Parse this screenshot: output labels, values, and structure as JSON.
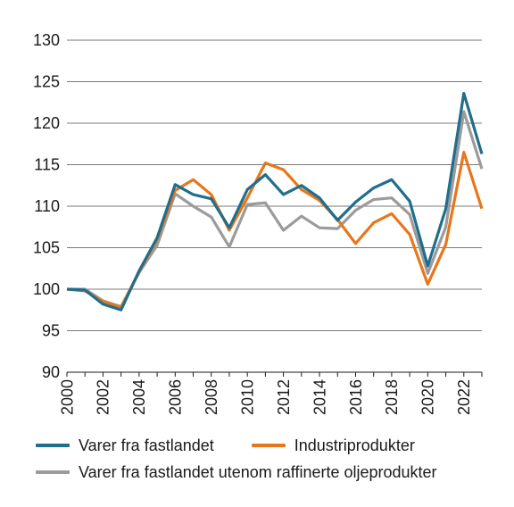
{
  "chart_data": {
    "type": "line",
    "x": [
      2000,
      2001,
      2002,
      2003,
      2004,
      2005,
      2006,
      2007,
      2008,
      2009,
      2010,
      2011,
      2012,
      2013,
      2014,
      2015,
      2016,
      2017,
      2018,
      2019,
      2020,
      2021,
      2022,
      2023
    ],
    "xticks": [
      "2000",
      "2002",
      "2004",
      "2006",
      "2008",
      "2010",
      "2012",
      "2014",
      "2016",
      "2018",
      "2020",
      "2022"
    ],
    "yticks": [
      "90",
      "95",
      "100",
      "105",
      "110",
      "115",
      "120",
      "125",
      "130"
    ],
    "ylim": [
      90,
      130
    ],
    "xlim": [
      2000,
      2023
    ],
    "grid": "horizontal",
    "legend_position": "bottom",
    "series": [
      {
        "name": "Varer fra fastlandet",
        "color": "#1f6e8c",
        "values": [
          100,
          99.9,
          98.2,
          97.5,
          102.2,
          106.2,
          112.6,
          111.4,
          110.9,
          107.4,
          112.0,
          113.8,
          111.4,
          112.5,
          111.0,
          108.3,
          110.5,
          112.2,
          113.2,
          110.6,
          102.8,
          109.7,
          123.6,
          116.3
        ]
      },
      {
        "name": "Industriprodukter",
        "color": "#e8761a",
        "values": [
          100,
          99.8,
          98.5,
          97.8,
          102.1,
          106.0,
          111.9,
          113.2,
          111.4,
          107.1,
          111.0,
          115.2,
          114.4,
          112.0,
          110.7,
          108.4,
          105.5,
          108.0,
          109.1,
          106.6,
          100.6,
          105.4,
          116.5,
          109.7
        ]
      },
      {
        "name": "Varer fra fastlandet utenom raffinerte oljeprodukter",
        "color": "#9b9b9b",
        "values": [
          100,
          100.0,
          98.6,
          97.9,
          102.0,
          105.3,
          111.5,
          110.0,
          108.7,
          105.1,
          110.2,
          110.4,
          107.1,
          108.8,
          107.4,
          107.3,
          109.5,
          110.8,
          111.0,
          109.0,
          101.9,
          107.5,
          121.4,
          114.5
        ]
      }
    ]
  }
}
